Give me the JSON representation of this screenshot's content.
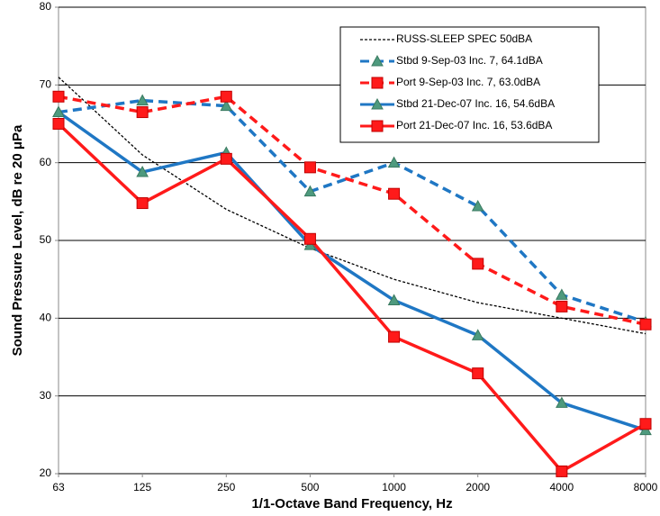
{
  "chart_data": {
    "type": "line",
    "x_label": "1/1-Octave Band Frequency, Hz",
    "y_label": "Sound Pressure Level, dB re 20 μPa",
    "categories": [
      "63",
      "125",
      "250",
      "500",
      "1000",
      "2000",
      "4000",
      "8000"
    ],
    "ylim": [
      20,
      80
    ],
    "yticks": [
      20,
      30,
      40,
      50,
      60,
      70,
      80
    ],
    "grid": true,
    "legend": "upper right",
    "series": [
      {
        "name": "RUSS-SLEEP SPEC 50dBA",
        "color": "#000000",
        "dash": "dotted",
        "marker": "none",
        "values": [
          71,
          61,
          54,
          49,
          45,
          42,
          40,
          38
        ]
      },
      {
        "name": "Stbd 9-Sep-03 Inc. 7, 64.1dBA",
        "color": "#1f77c4",
        "dash": "dashed",
        "marker": "triangle",
        "values": [
          66.5,
          68,
          67.3,
          56.3,
          60,
          54.4,
          43,
          39.5
        ]
      },
      {
        "name": "Port 9-Sep-03 Inc. 7, 63.0dBA",
        "color": "#ff1a1a",
        "dash": "dashed",
        "marker": "square",
        "values": [
          68.5,
          66.5,
          68.5,
          59.4,
          56,
          47,
          41.5,
          39.2
        ]
      },
      {
        "name": "Stbd 21-Dec-07 Inc. 16, 54.6dBA",
        "color": "#1f77c4",
        "dash": "solid",
        "marker": "triangle",
        "values": [
          66.5,
          58.8,
          61.3,
          49.4,
          42.3,
          37.8,
          29.1,
          25.6
        ]
      },
      {
        "name": "Port 21-Dec-07 Inc. 16, 53.6dBA",
        "color": "#ff1a1a",
        "dash": "solid",
        "marker": "square",
        "values": [
          65,
          54.8,
          60.5,
          50.2,
          37.6,
          32.9,
          20.3,
          26.4
        ]
      }
    ]
  }
}
